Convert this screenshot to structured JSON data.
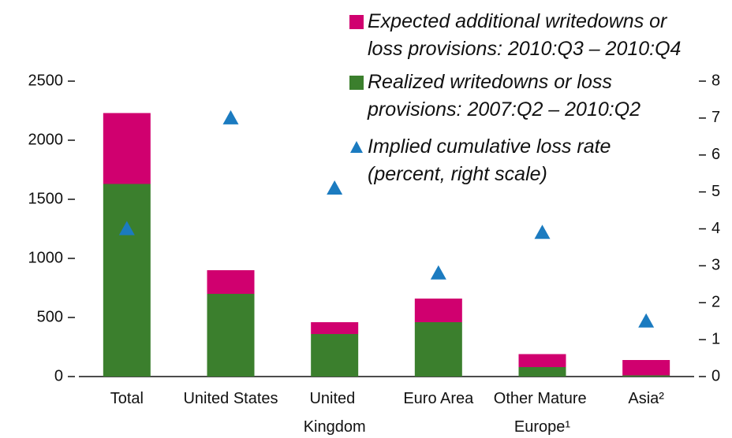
{
  "chart_data": {
    "type": "bar",
    "stacked": true,
    "categories": [
      "Total",
      "United States",
      "United Kingdom",
      "Euro Area",
      "Other Mature Europe¹",
      "Asia²"
    ],
    "series": [
      {
        "name": "Expected additional writedowns or loss provisions: 2010:Q3 – 2010:Q4",
        "color": "#d0006f",
        "values": [
          600,
          200,
          100,
          200,
          110,
          130
        ]
      },
      {
        "name": "Realized writedowns or loss provisions: 2007:Q2 – 2010:Q2",
        "color": "#3b7f2d",
        "values": [
          1630,
          700,
          360,
          460,
          80,
          10
        ]
      },
      {
        "name": "Implied cumulative loss rate (percent, right scale)",
        "color": "#1b7bc0",
        "axis": "y2",
        "marker": "triangle",
        "values": [
          4.0,
          7.0,
          5.1,
          2.8,
          3.9,
          1.5
        ]
      }
    ],
    "ylim": [
      0,
      2500
    ],
    "yticks": [
      0,
      500,
      1000,
      1500,
      2000,
      2500
    ],
    "y2lim": [
      0,
      8
    ],
    "y2ticks": [
      0,
      1,
      2,
      3,
      4,
      5,
      6,
      7,
      8
    ],
    "legend": "top-right"
  }
}
